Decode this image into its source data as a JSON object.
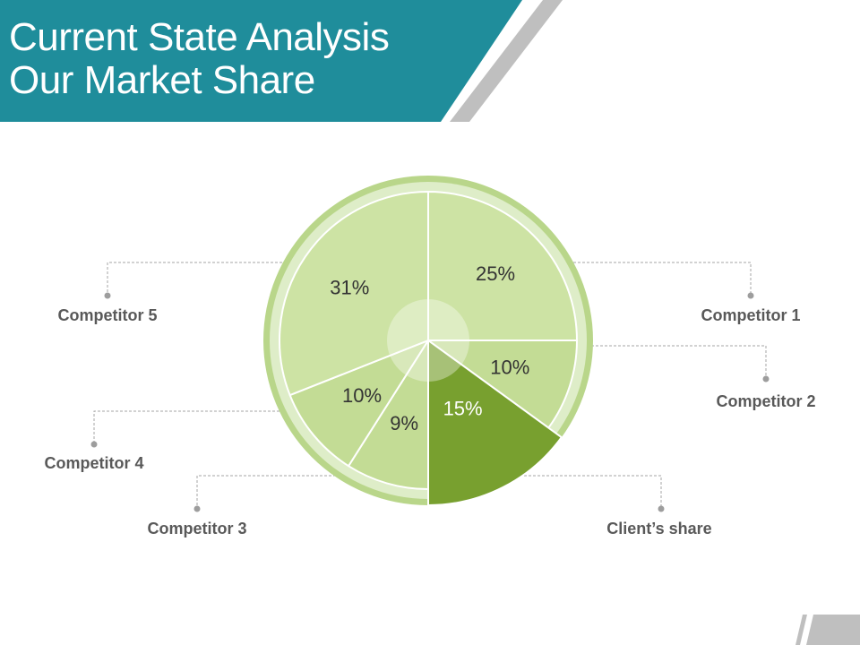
{
  "slide": {
    "title_line1": "Current State Analysis",
    "title_line2": "Our Market Share"
  },
  "colors": {
    "header_teal": "#1f8d9b",
    "stripe_gray": "#bfbfbf",
    "slice_light": "#cde3a4",
    "slice_medium": "#c3dc95",
    "slice_client": "#78a02f",
    "ring_outer": "#b9d68a",
    "ring_inner": "#deedc8"
  },
  "chart_data": {
    "type": "pie",
    "title": "",
    "slices": [
      {
        "category": "Competitor 1",
        "value": 25,
        "label": "25%"
      },
      {
        "category": "Competitor 2",
        "value": 10,
        "label": "10%"
      },
      {
        "category": "Client’s share",
        "value": 15,
        "label": "15%"
      },
      {
        "category": "Competitor 3",
        "value": 9,
        "label": "9%"
      },
      {
        "category": "Competitor 4",
        "value": 10,
        "label": "10%"
      },
      {
        "category": "Competitor 5",
        "value": 31,
        "label": "31%"
      }
    ],
    "highlighted_category": "Client’s share",
    "legend": "none"
  }
}
